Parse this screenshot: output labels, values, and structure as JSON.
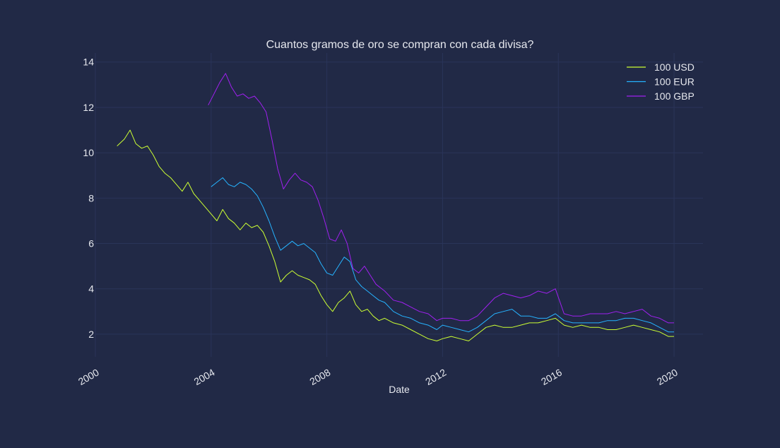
{
  "chart_data": {
    "type": "line",
    "title": "Cuantos gramos de oro se compran con cada divisa?",
    "xlabel": "Date",
    "ylabel": "",
    "xlim": [
      2000,
      2021
    ],
    "ylim": [
      1.0,
      14.4
    ],
    "x_ticks": [
      2000,
      2004,
      2008,
      2012,
      2016,
      2020
    ],
    "x_tick_labels": [
      "2000",
      "2004",
      "2008",
      "2012",
      "2016",
      "2020"
    ],
    "y_ticks": [
      2,
      4,
      6,
      8,
      10,
      12,
      14
    ],
    "y_tick_labels": [
      "2",
      "4",
      "6",
      "8",
      "10",
      "12",
      "14"
    ],
    "grid": true,
    "legend_position": "top-right",
    "series": [
      {
        "name": "100 USD",
        "color": "#ccff33",
        "x": [
          2000.75,
          2001.0,
          2001.2,
          2001.4,
          2001.6,
          2001.8,
          2002.0,
          2002.2,
          2002.4,
          2002.6,
          2002.8,
          2003.0,
          2003.2,
          2003.4,
          2003.6,
          2003.8,
          2004.0,
          2004.2,
          2004.4,
          2004.6,
          2004.8,
          2005.0,
          2005.2,
          2005.4,
          2005.6,
          2005.8,
          2006.0,
          2006.2,
          2006.4,
          2006.6,
          2006.8,
          2007.0,
          2007.2,
          2007.4,
          2007.6,
          2007.8,
          2008.0,
          2008.2,
          2008.4,
          2008.6,
          2008.8,
          2009.0,
          2009.2,
          2009.4,
          2009.6,
          2009.8,
          2010.0,
          2010.3,
          2010.6,
          2010.9,
          2011.2,
          2011.5,
          2011.8,
          2012.0,
          2012.3,
          2012.6,
          2012.9,
          2013.2,
          2013.5,
          2013.8,
          2014.1,
          2014.4,
          2014.7,
          2015.0,
          2015.3,
          2015.6,
          2015.9,
          2016.2,
          2016.5,
          2016.8,
          2017.1,
          2017.4,
          2017.7,
          2018.0,
          2018.3,
          2018.6,
          2018.9,
          2019.2,
          2019.5,
          2019.8,
          2020.0
        ],
        "values": [
          10.3,
          10.6,
          11.0,
          10.4,
          10.2,
          10.3,
          9.9,
          9.4,
          9.1,
          8.9,
          8.6,
          8.3,
          8.7,
          8.2,
          7.9,
          7.6,
          7.3,
          7.0,
          7.5,
          7.1,
          6.9,
          6.6,
          6.9,
          6.7,
          6.8,
          6.5,
          5.9,
          5.2,
          4.3,
          4.6,
          4.8,
          4.6,
          4.5,
          4.4,
          4.2,
          3.7,
          3.3,
          3.0,
          3.4,
          3.6,
          3.9,
          3.3,
          3.0,
          3.1,
          2.8,
          2.6,
          2.7,
          2.5,
          2.4,
          2.2,
          2.0,
          1.8,
          1.7,
          1.8,
          1.9,
          1.8,
          1.7,
          2.0,
          2.3,
          2.4,
          2.3,
          2.3,
          2.4,
          2.5,
          2.5,
          2.6,
          2.7,
          2.4,
          2.3,
          2.4,
          2.3,
          2.3,
          2.2,
          2.2,
          2.3,
          2.4,
          2.3,
          2.2,
          2.1,
          1.9,
          1.9
        ]
      },
      {
        "name": "100 EUR",
        "color": "#26b3ff",
        "x": [
          2004.0,
          2004.2,
          2004.4,
          2004.6,
          2004.8,
          2005.0,
          2005.2,
          2005.4,
          2005.6,
          2005.8,
          2006.0,
          2006.2,
          2006.4,
          2006.6,
          2006.8,
          2007.0,
          2007.2,
          2007.4,
          2007.6,
          2007.8,
          2008.0,
          2008.2,
          2008.4,
          2008.6,
          2008.8,
          2009.0,
          2009.2,
          2009.4,
          2009.6,
          2009.8,
          2010.0,
          2010.3,
          2010.6,
          2010.9,
          2011.2,
          2011.5,
          2011.8,
          2012.0,
          2012.3,
          2012.6,
          2012.9,
          2013.2,
          2013.5,
          2013.8,
          2014.1,
          2014.4,
          2014.7,
          2015.0,
          2015.3,
          2015.6,
          2015.9,
          2016.2,
          2016.5,
          2016.8,
          2017.1,
          2017.4,
          2017.7,
          2018.0,
          2018.3,
          2018.6,
          2018.9,
          2019.2,
          2019.5,
          2019.8,
          2020.0
        ],
        "values": [
          8.5,
          8.7,
          8.9,
          8.6,
          8.5,
          8.7,
          8.6,
          8.4,
          8.1,
          7.6,
          7.0,
          6.3,
          5.7,
          5.9,
          6.1,
          5.9,
          6.0,
          5.8,
          5.6,
          5.1,
          4.7,
          4.6,
          5.0,
          5.4,
          5.2,
          4.4,
          4.1,
          3.9,
          3.7,
          3.5,
          3.4,
          3.0,
          2.8,
          2.7,
          2.5,
          2.4,
          2.2,
          2.4,
          2.3,
          2.2,
          2.1,
          2.3,
          2.6,
          2.9,
          3.0,
          3.1,
          2.8,
          2.8,
          2.7,
          2.7,
          2.9,
          2.6,
          2.5,
          2.5,
          2.5,
          2.5,
          2.6,
          2.6,
          2.7,
          2.7,
          2.6,
          2.5,
          2.3,
          2.1,
          2.1
        ]
      },
      {
        "name": "100 GBP",
        "color": "#a020f0",
        "x": [
          2003.9,
          2004.1,
          2004.3,
          2004.5,
          2004.7,
          2004.9,
          2005.1,
          2005.3,
          2005.5,
          2005.7,
          2005.9,
          2006.1,
          2006.3,
          2006.5,
          2006.7,
          2006.9,
          2007.1,
          2007.3,
          2007.5,
          2007.7,
          2007.9,
          2008.1,
          2008.3,
          2008.5,
          2008.7,
          2008.9,
          2009.1,
          2009.3,
          2009.5,
          2009.7,
          2010.0,
          2010.3,
          2010.6,
          2010.9,
          2011.2,
          2011.5,
          2011.8,
          2012.0,
          2012.3,
          2012.6,
          2012.9,
          2013.2,
          2013.5,
          2013.8,
          2014.1,
          2014.4,
          2014.7,
          2015.0,
          2015.3,
          2015.6,
          2015.9,
          2016.2,
          2016.5,
          2016.8,
          2017.1,
          2017.4,
          2017.7,
          2018.0,
          2018.3,
          2018.6,
          2018.9,
          2019.2,
          2019.5,
          2019.8,
          2020.0
        ],
        "values": [
          12.1,
          12.6,
          13.1,
          13.5,
          12.9,
          12.5,
          12.6,
          12.4,
          12.5,
          12.2,
          11.8,
          10.6,
          9.3,
          8.4,
          8.8,
          9.1,
          8.8,
          8.7,
          8.5,
          7.9,
          7.1,
          6.2,
          6.1,
          6.6,
          6.0,
          4.9,
          4.7,
          5.0,
          4.6,
          4.2,
          3.9,
          3.5,
          3.4,
          3.2,
          3.0,
          2.9,
          2.6,
          2.7,
          2.7,
          2.6,
          2.6,
          2.8,
          3.2,
          3.6,
          3.8,
          3.7,
          3.6,
          3.7,
          3.9,
          3.8,
          4.0,
          2.9,
          2.8,
          2.8,
          2.9,
          2.9,
          2.9,
          3.0,
          2.9,
          3.0,
          3.1,
          2.8,
          2.7,
          2.5,
          2.5
        ]
      }
    ]
  }
}
